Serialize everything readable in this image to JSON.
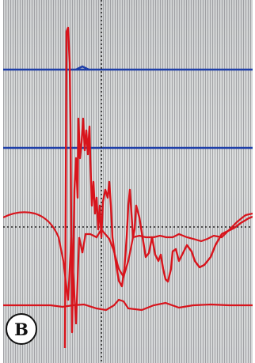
{
  "panel": {
    "label": "B"
  },
  "colors": {
    "background": "#d6d8d8",
    "grid_blue": "#1f3fa8",
    "grid_dotted": "#222222",
    "trace_red": "#d8141c",
    "badge_border": "#111111"
  }
}
